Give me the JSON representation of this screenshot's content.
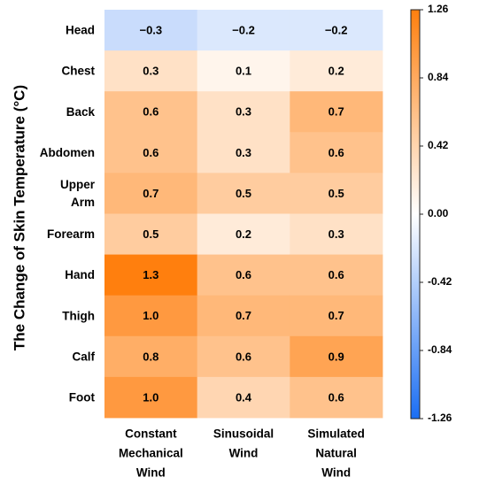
{
  "chart_data": {
    "type": "heatmap",
    "ylabel": "The Change of Skin Temperature (°C)",
    "rows": [
      {
        "lines": [
          "Head"
        ]
      },
      {
        "lines": [
          "Chest"
        ]
      },
      {
        "lines": [
          "Back"
        ]
      },
      {
        "lines": [
          "Abdomen"
        ]
      },
      {
        "lines": [
          "Upper",
          "Arm"
        ]
      },
      {
        "lines": [
          "Forearm"
        ]
      },
      {
        "lines": [
          "Hand"
        ]
      },
      {
        "lines": [
          "Thigh"
        ]
      },
      {
        "lines": [
          "Calf"
        ]
      },
      {
        "lines": [
          "Foot"
        ]
      }
    ],
    "columns": [
      {
        "lines": [
          "Constant",
          "Mechanical",
          "Wind"
        ]
      },
      {
        "lines": [
          "Sinusoidal",
          "Wind"
        ]
      },
      {
        "lines": [
          "Simulated",
          "Natural",
          "Wind"
        ]
      }
    ],
    "values": [
      [
        -0.3,
        -0.2,
        -0.2
      ],
      [
        0.3,
        0.1,
        0.2
      ],
      [
        0.6,
        0.3,
        0.7
      ],
      [
        0.6,
        0.3,
        0.6
      ],
      [
        0.7,
        0.5,
        0.5
      ],
      [
        0.5,
        0.2,
        0.3
      ],
      [
        1.3,
        0.6,
        0.6
      ],
      [
        1.0,
        0.7,
        0.7
      ],
      [
        0.8,
        0.6,
        0.9
      ],
      [
        1.0,
        0.4,
        0.6
      ]
    ],
    "value_labels": [
      [
        "−0.3",
        "−0.2",
        "−0.2"
      ],
      [
        "0.3",
        "0.1",
        "0.2"
      ],
      [
        "0.6",
        "0.3",
        "0.7"
      ],
      [
        "0.6",
        "0.3",
        "0.6"
      ],
      [
        "0.7",
        "0.5",
        "0.5"
      ],
      [
        "0.5",
        "0.2",
        "0.3"
      ],
      [
        "1.3",
        "0.6",
        "0.6"
      ],
      [
        "1.0",
        "0.7",
        "0.7"
      ],
      [
        "0.8",
        "0.6",
        "0.9"
      ],
      [
        "1.0",
        "0.4",
        "0.6"
      ]
    ],
    "colorbar": {
      "min": -1.26,
      "max": 1.26,
      "ticks": [
        "1.26",
        "0.84",
        "0.42",
        "0.00",
        "-0.42",
        "-0.84",
        "-1.26"
      ],
      "tick_values": [
        1.26,
        0.84,
        0.42,
        0.0,
        -0.42,
        -0.84,
        -1.26
      ],
      "color_low": "#1b6ef3",
      "color_mid": "#ffffff",
      "color_high": "#ff7f0e"
    }
  }
}
